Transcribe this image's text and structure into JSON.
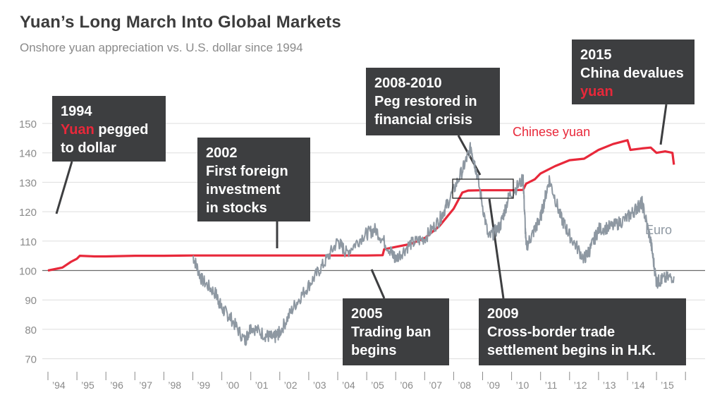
{
  "title": "Yuan’s Long March Into Global Markets",
  "subtitle": "Onshore yuan appreciation vs. U.S. dollar since 1994",
  "colors": {
    "yuan": "#e8283a",
    "euro": "#8e98a2",
    "box": "#3d3e40",
    "baseline": "#6b6b6b",
    "grid": "#dddddd"
  },
  "chart_data": {
    "type": "line",
    "title": "Yuan’s Long March Into Global Markets",
    "subtitle": "Onshore yuan appreciation vs. U.S. dollar since 1994",
    "ylim": [
      70,
      150
    ],
    "y_ticks": [
      70,
      80,
      90,
      100,
      110,
      120,
      130,
      140,
      150
    ],
    "xlim": [
      1994,
      2015.9
    ],
    "x_tick_labels": [
      "’94",
      "’95",
      "’96",
      "’97",
      "’98",
      "’99",
      "’00",
      "’01",
      "’02",
      "’03",
      "’04",
      "’05",
      "’06",
      "’07",
      "’08",
      "’09",
      "’10",
      "’11",
      "’12",
      "’13",
      "’14",
      "’15"
    ],
    "baseline": 100,
    "series": [
      {
        "name": "Chinese yuan",
        "x": [
          1994.0,
          1994.5,
          1994.8,
          1995.0,
          1995.1,
          1995.6,
          1996.0,
          1997.0,
          1998.0,
          1999.0,
          2000.0,
          2001.0,
          2002.0,
          2003.0,
          2004.0,
          2005.0,
          2005.55,
          2005.6,
          2006.0,
          2006.5,
          2007.0,
          2007.5,
          2008.0,
          2008.3,
          2008.5,
          2009.0,
          2009.5,
          2010.0,
          2010.4,
          2010.5,
          2010.8,
          2011.0,
          2011.5,
          2012.0,
          2012.5,
          2013.0,
          2013.5,
          2014.0,
          2014.1,
          2014.5,
          2014.8,
          2015.0,
          2015.3,
          2015.55,
          2015.6
        ],
        "values": [
          100,
          101,
          103,
          104,
          105,
          104.8,
          104.8,
          105,
          105,
          105.1,
          105.1,
          105.1,
          105.1,
          105.1,
          105.1,
          105.1,
          105.2,
          107.2,
          108,
          109,
          111,
          115,
          121,
          126.5,
          127.2,
          127.3,
          127.3,
          127.3,
          127.4,
          129.5,
          131,
          133,
          135.5,
          137.5,
          138,
          141,
          143,
          144.3,
          141,
          141.5,
          141.8,
          140,
          140.5,
          140,
          136
        ]
      },
      {
        "name": "Euro",
        "x": [
          1999.0,
          1999.3,
          1999.8,
          2000.0,
          2000.3,
          2000.8,
          2001.0,
          2001.5,
          2001.8,
          2002.0,
          2002.5,
          2003.0,
          2003.5,
          2004.0,
          2004.3,
          2004.9,
          2005.3,
          2005.8,
          2006.0,
          2006.5,
          2007.0,
          2007.5,
          2007.8,
          2008.3,
          2008.6,
          2008.8,
          2009.2,
          2009.6,
          2009.9,
          2010.4,
          2010.5,
          2010.8,
          2011.0,
          2011.3,
          2011.7,
          2012.0,
          2012.5,
          2012.7,
          2013.0,
          2013.5,
          2014.0,
          2014.3,
          2014.5,
          2014.8,
          2015.0,
          2015.2,
          2015.6
        ],
        "values": [
          105,
          97,
          92,
          87,
          84,
          76,
          81,
          78,
          77,
          79,
          88,
          95,
          102,
          110,
          106,
          112,
          114,
          107,
          104,
          109,
          111,
          117,
          123,
          134,
          142,
          133,
          111,
          115,
          125,
          131,
          108,
          114,
          118,
          131,
          118,
          112,
          104,
          107,
          114,
          115,
          118,
          121,
          123,
          110,
          96,
          97,
          98
        ]
      }
    ],
    "series_labels": [
      "Chinese yuan",
      "Euro"
    ],
    "annotations": [
      {
        "year": "1994",
        "lines": [
          [
            {
              "t": "Yuan",
              "hl": true
            },
            {
              "t": " pegged"
            }
          ],
          [
            {
              "t": "to dollar"
            }
          ]
        ]
      },
      {
        "year": "2002",
        "lines": [
          [
            {
              "t": "First foreign"
            }
          ],
          [
            {
              "t": "investment"
            }
          ],
          [
            {
              "t": "in stocks"
            }
          ]
        ]
      },
      {
        "year": "2005",
        "lines": [
          [
            {
              "t": "Trading ban"
            }
          ],
          [
            {
              "t": "begins"
            }
          ]
        ]
      },
      {
        "year": "2008-2010",
        "lines": [
          [
            {
              "t": "Peg restored in"
            }
          ],
          [
            {
              "t": "financial crisis"
            }
          ]
        ]
      },
      {
        "year": "2009",
        "lines": [
          [
            {
              "t": "Cross-border trade"
            }
          ],
          [
            {
              "t": "settlement begins in H.K."
            }
          ]
        ]
      },
      {
        "year": "2015",
        "lines": [
          [
            {
              "t": "China devalues"
            }
          ],
          [
            {
              "t": "yuan",
              "hl": true
            }
          ]
        ]
      }
    ]
  }
}
